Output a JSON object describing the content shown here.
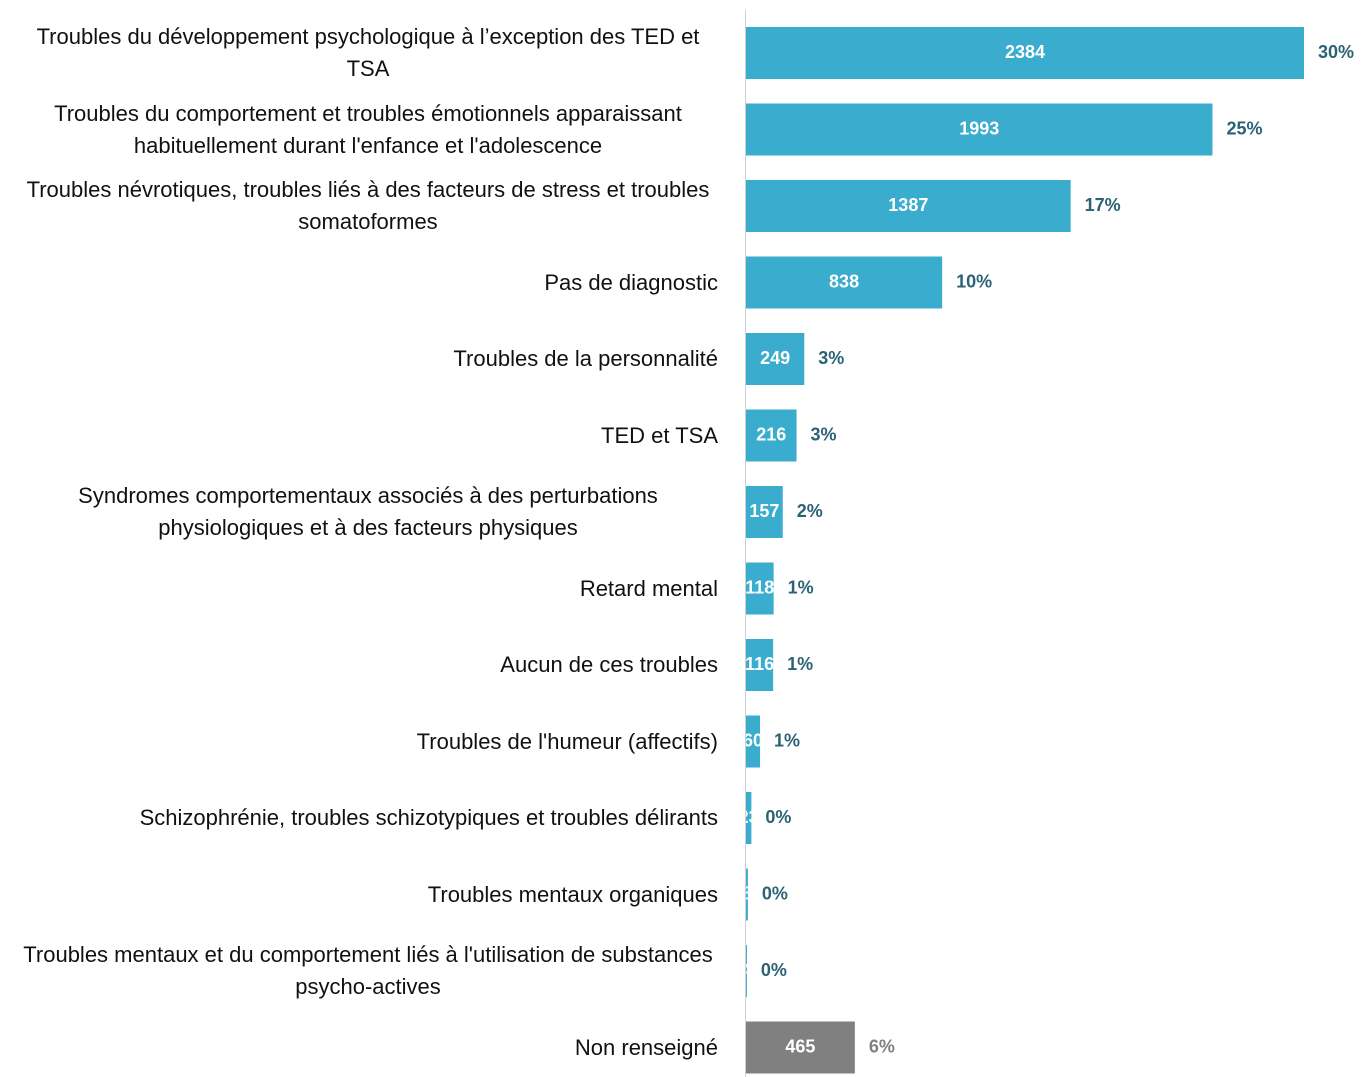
{
  "chart_data": {
    "type": "bar",
    "orientation": "horizontal",
    "categories": [
      "Troubles du développement psychologique à l’exception des TED et TSA",
      "Troubles du comportement et troubles émotionnels apparaissant habituellement durant l'enfance et l'adolescence",
      "Troubles névrotiques, troubles liés à des facteurs de stress et troubles somatoformes",
      "Pas de diagnostic",
      "Troubles de la personnalité",
      "TED et TSA",
      "Syndromes comportementaux associés à des perturbations physiologiques et à des facteurs physiques",
      "Retard mental",
      "Aucun de ces troubles",
      "Troubles de l'humeur (affectifs)",
      "Schizophrénie, troubles schizotypiques et troubles délirants",
      "Troubles mentaux organiques",
      "Troubles mentaux et du comportement liés à l'utilisation de substances psycho-actives",
      "Non renseigné"
    ],
    "values": [
      2384,
      1993,
      1387,
      838,
      249,
      216,
      157,
      118,
      116,
      60,
      23,
      8,
      4,
      465
    ],
    "shares": [
      30,
      25,
      17,
      10,
      3,
      3,
      2,
      1,
      1,
      1,
      0,
      0,
      0,
      6
    ],
    "share_labels": [
      "30%",
      "25%",
      "17%",
      "10%",
      "3%",
      "3%",
      "2%",
      "1%",
      "1%",
      "1%",
      "0%",
      "0%",
      "0%",
      "6%"
    ],
    "colors": [
      "#3aaccd",
      "#3aaccd",
      "#3aaccd",
      "#3aaccd",
      "#3aaccd",
      "#3aaccd",
      "#3aaccd",
      "#3aaccd",
      "#3aaccd",
      "#3aaccd",
      "#3aaccd",
      "#3aaccd",
      "#3aaccd",
      "#808080"
    ],
    "label_colors": [
      "#2b6274",
      "#2b6274",
      "#2b6274",
      "#2b6274",
      "#2b6274",
      "#2b6274",
      "#2b6274",
      "#2b6274",
      "#2b6274",
      "#2b6274",
      "#2b6274",
      "#2b6274",
      "#2b6274",
      "#808080"
    ],
    "xlim": [
      0,
      2384
    ]
  }
}
